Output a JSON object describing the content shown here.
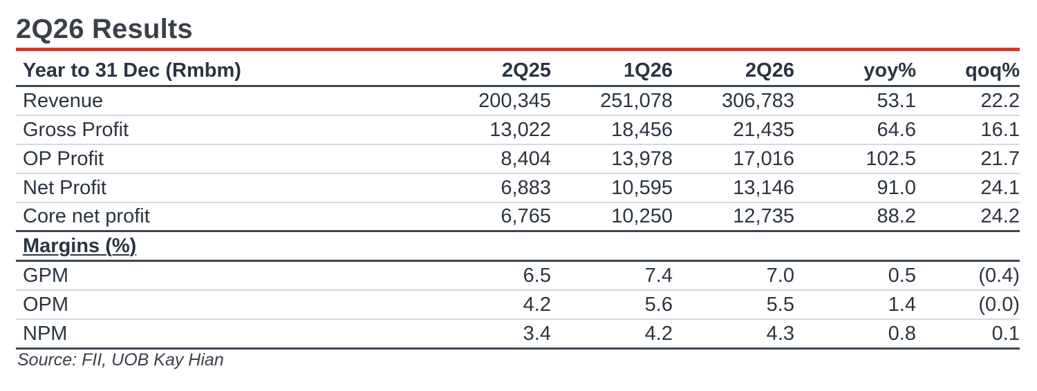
{
  "title": "2Q26 Results",
  "accent_color": "#c73b32",
  "header": {
    "label": "Year to 31 Dec (Rmbm)",
    "columns": [
      "2Q25",
      "1Q26",
      "2Q26",
      "yoy%",
      "qoq%"
    ]
  },
  "rows": [
    {
      "label": "Revenue",
      "values": [
        "200,345",
        "251,078",
        "306,783",
        "53.1",
        "22.2"
      ]
    },
    {
      "label": "Gross Profit",
      "values": [
        "13,022",
        "18,456",
        "21,435",
        "64.6",
        "16.1"
      ]
    },
    {
      "label": "OP Profit",
      "values": [
        "8,404",
        "13,978",
        "17,016",
        "102.5",
        "21.7"
      ]
    },
    {
      "label": "Net Profit",
      "values": [
        "6,883",
        "10,595",
        "13,146",
        "91.0",
        "24.1"
      ]
    },
    {
      "label": "Core net profit",
      "values": [
        "6,765",
        "10,250",
        "12,735",
        "88.2",
        "24.2"
      ]
    }
  ],
  "margins": {
    "section_label": "Margins (%)",
    "rows": [
      {
        "label": "GPM",
        "values": [
          "6.5",
          "7.4",
          "7.0",
          "0.5",
          "(0.4)"
        ]
      },
      {
        "label": "OPM",
        "values": [
          "4.2",
          "5.6",
          "5.5",
          "1.4",
          "(0.0)"
        ]
      },
      {
        "label": "NPM",
        "values": [
          "3.4",
          "4.2",
          "4.3",
          "0.8",
          "0.1"
        ]
      }
    ]
  },
  "source": "Source: FII, UOB Kay Hian"
}
